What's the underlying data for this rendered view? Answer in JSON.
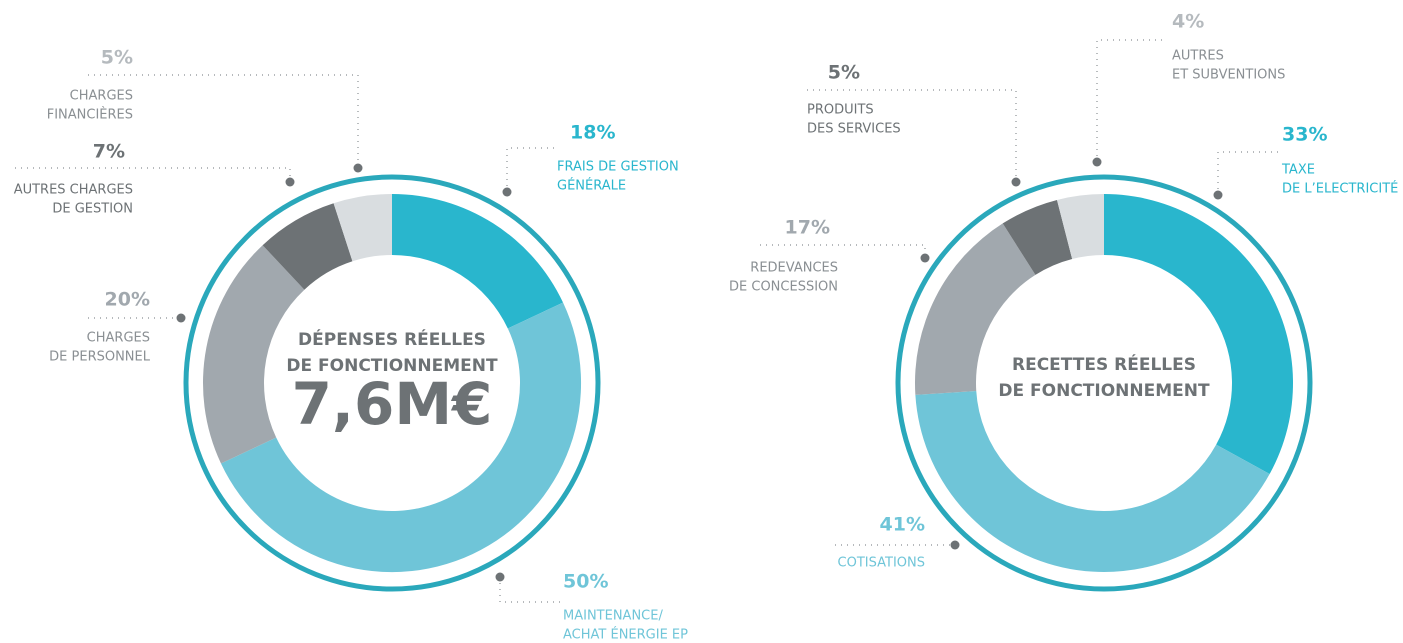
{
  "chart_data": [
    {
      "type": "pie",
      "title": [
        "DÉPENSES RÉELLES",
        "DE FONCTIONNEMENT"
      ],
      "total": "7,6M€",
      "categories": [
        [
          "FRAIS DE GESTION",
          "GÉNÉRALE"
        ],
        [
          "MAINTENANCE/",
          "ACHAT ÉNERGIE EP"
        ],
        [
          "CHARGES",
          "DE PERSONNEL"
        ],
        [
          "AUTRES CHARGES",
          "DE GESTION"
        ],
        [
          "CHARGES",
          "FINANCIÈRES"
        ]
      ],
      "values": [
        18,
        50,
        20,
        7,
        5
      ],
      "value_labels": [
        "18%",
        "50%",
        "20%",
        "7%",
        "5%"
      ],
      "colors": [
        "#29b6cd",
        "#6fc5d8",
        "#a1a8ae",
        "#6d7275",
        "#d9dde0"
      ]
    },
    {
      "type": "pie",
      "title": [
        "RECETTES RÉELLES",
        "DE FONCTIONNEMENT"
      ],
      "categories": [
        [
          "TAXE",
          "DE L’ELECTRICITÉ"
        ],
        [
          "COTISATIONS"
        ],
        [
          "REDEVANCES",
          "DE CONCESSION"
        ],
        [
          "PRODUITS",
          "DES SERVICES"
        ],
        [
          "AUTRES",
          "ET SUBVENTIONS"
        ]
      ],
      "values": [
        33,
        41,
        17,
        5,
        4
      ],
      "value_labels": [
        "33%",
        "41%",
        "17%",
        "5%",
        "4%"
      ],
      "colors": [
        "#29b6cd",
        "#6fc5d8",
        "#a1a8ae",
        "#6d7275",
        "#d9dde0"
      ]
    }
  ]
}
